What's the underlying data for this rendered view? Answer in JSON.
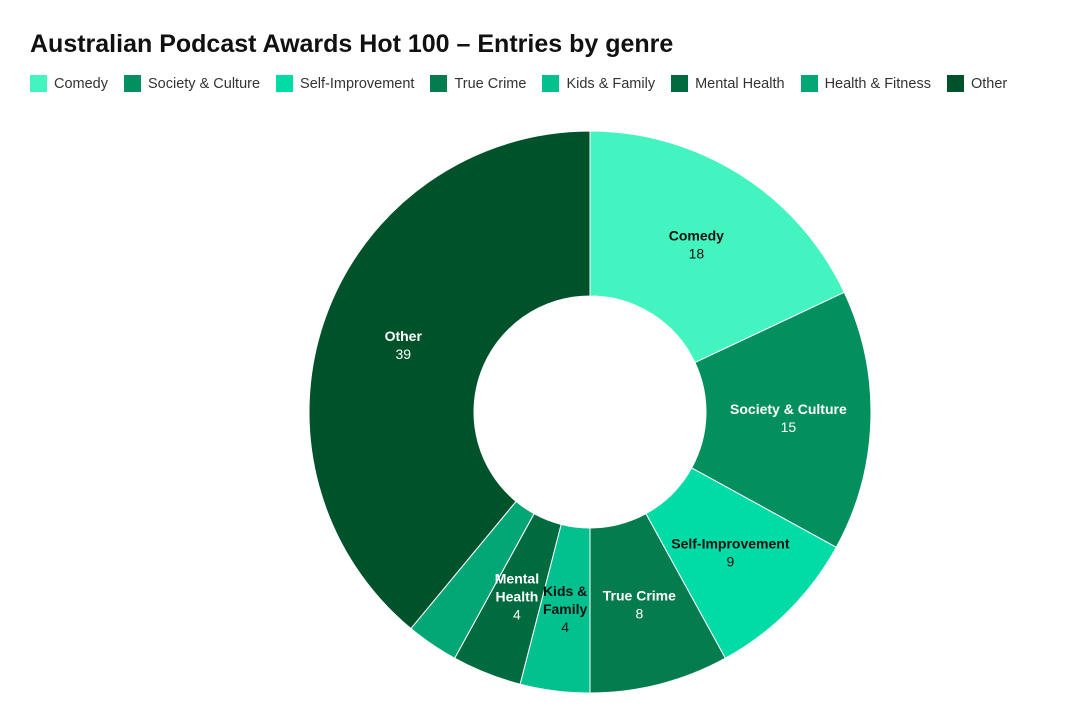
{
  "chart_data": {
    "type": "pie",
    "donut": true,
    "title": "Australian Podcast Awards Hot 100 – Entries by genre",
    "legend_position": "top",
    "slices": [
      {
        "name": "Comedy",
        "value": 18,
        "color": "#43f4c0",
        "label_lines": [
          "Comedy"
        ],
        "label_color": "#111111"
      },
      {
        "name": "Society & Culture",
        "value": 15,
        "color": "#038f5e",
        "label_lines": [
          "Society & Culture"
        ],
        "label_color": "#ffffff"
      },
      {
        "name": "Self-Improvement",
        "value": 9,
        "color": "#01dca7",
        "label_lines": [
          "Self-Improvement"
        ],
        "label_color": "#111111"
      },
      {
        "name": "True Crime",
        "value": 8,
        "color": "#047c4e",
        "label_lines": [
          "True Crime"
        ],
        "label_color": "#ffffff"
      },
      {
        "name": "Kids & Family",
        "value": 4,
        "color": "#02c18e",
        "label_lines": [
          "Kids &",
          "Family"
        ],
        "label_color": "#111111"
      },
      {
        "name": "Mental Health",
        "value": 4,
        "color": "#006b3e",
        "label_lines": [
          "Mental",
          "Health"
        ],
        "label_color": "#ffffff"
      },
      {
        "name": "Health & Fitness",
        "value": 3,
        "color": "#03a775",
        "label_lines": [],
        "label_color": "#111111"
      },
      {
        "name": "Other",
        "value": 39,
        "color": "#00522a",
        "label_lines": [
          "Other"
        ],
        "label_color": "#ffffff"
      }
    ]
  }
}
